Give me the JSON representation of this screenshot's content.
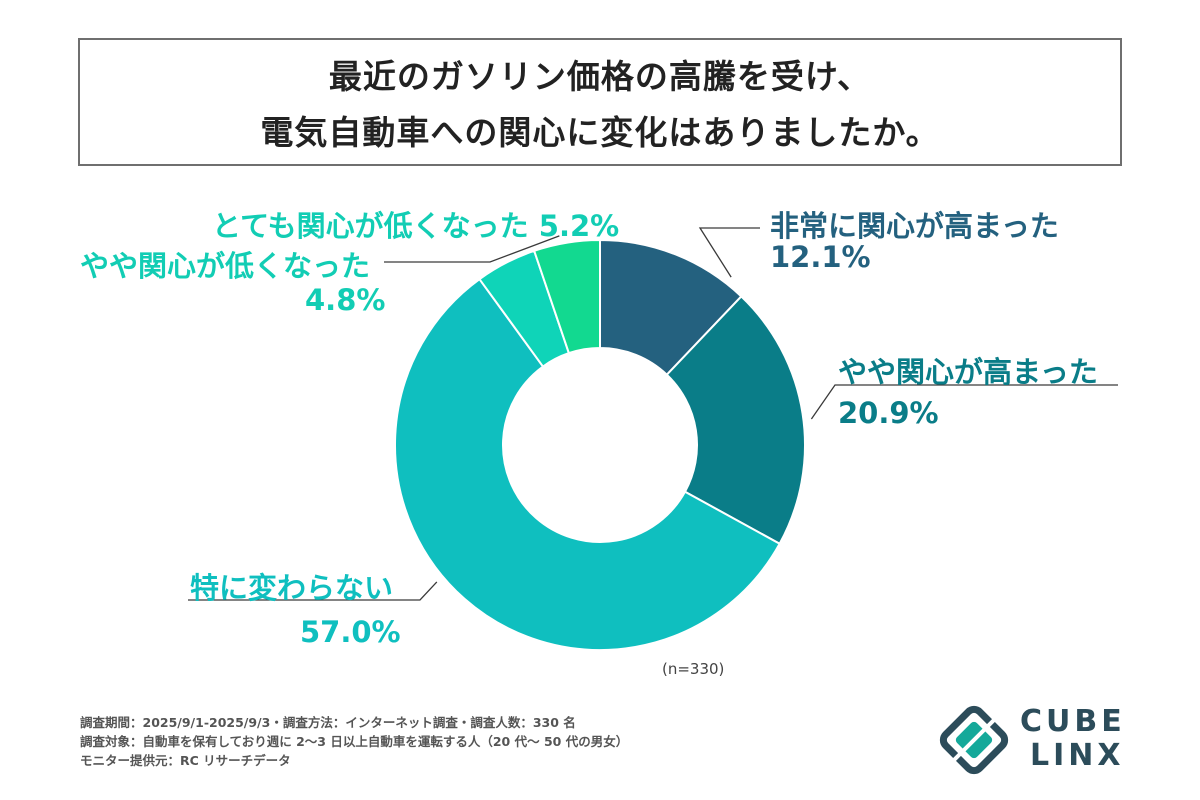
{
  "header": {
    "title_line1": "最近のガソリン価格の高騰を受け、",
    "title_line2": "電気自動車への関心に変化はありましたか。"
  },
  "chart_data": {
    "type": "pie",
    "variant": "donut",
    "slices": [
      {
        "label": "非常に関心が高まった",
        "value": 12.1,
        "pct_text": "12.1%",
        "color": "#24617f",
        "label_color": "#24617f"
      },
      {
        "label": "やや関心が高まった",
        "value": 20.9,
        "pct_text": "20.9%",
        "color": "#0a7d88",
        "label_color": "#0a7d88"
      },
      {
        "label": "特に変わらない",
        "value": 57.0,
        "pct_text": "57.0%",
        "color": "#0fbfbf",
        "label_color": "#0fbfbf"
      },
      {
        "label": "やや関心が低くなった",
        "value": 4.8,
        "pct_text": "4.8%",
        "color": "#0fd4b8",
        "label_color": "#12cdb4"
      },
      {
        "label": "とても関心が低くなった",
        "value": 5.2,
        "pct_text": "5.2%",
        "color": "#12d990",
        "label_color": "#12cdb4"
      }
    ],
    "start_angle_deg": 0,
    "direction": "clockwise",
    "n_note": "(n=330)"
  },
  "footer": {
    "line1": "調査期間：2025/9/1-2025/9/3・調査方法：インターネット調査・調査人数：330 名",
    "line2": "調査対象：自動車を保有しており週に 2〜3 日以上自動車を運転する人（20 代〜 50 代の男女）",
    "line3": "モニター提供元：RC リサーチデータ"
  },
  "logo": {
    "top": "CUBE",
    "bottom": "LINX",
    "color": "#2c4c5a",
    "mark_color": "#14a99a"
  }
}
